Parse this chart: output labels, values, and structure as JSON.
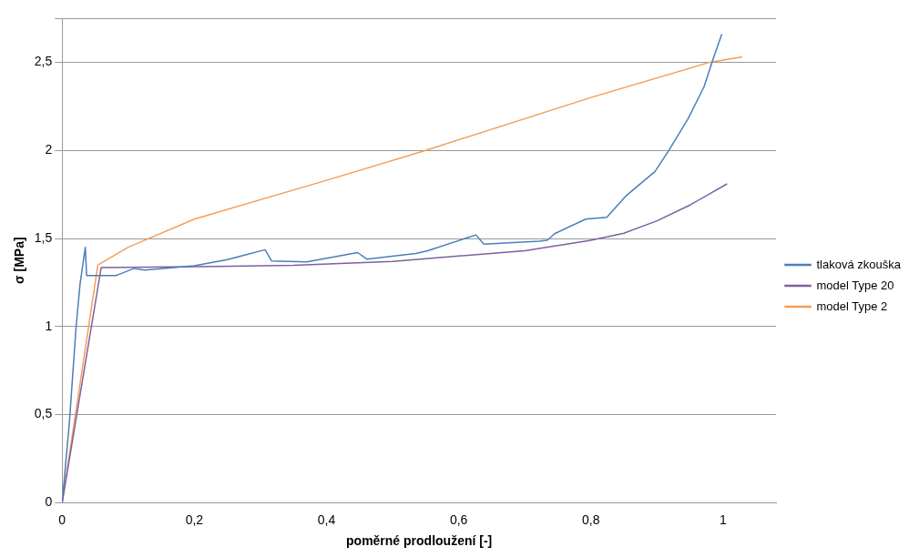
{
  "chart_data": {
    "type": "line",
    "xlabel": "poměrné prodloužení [-]",
    "ylabel": "σ [MPa]",
    "xlim": [
      0,
      1.08
    ],
    "xticks": [
      0,
      {
        "value": 0.2,
        "label": "0,2"
      },
      {
        "value": 0.4,
        "label": "0,4"
      },
      {
        "value": 0.6,
        "label": "0,6"
      },
      {
        "value": 0.8,
        "label": "0,8"
      },
      1
    ],
    "ylim": [
      0,
      2.75
    ],
    "yticks": [
      0,
      {
        "value": 0.5,
        "label": "0,5"
      },
      1,
      {
        "value": 1.5,
        "label": "1,5"
      },
      2,
      {
        "value": 2.5,
        "label": "2,5"
      }
    ],
    "grid": "y",
    "legend": "right",
    "marker": "none",
    "line_style": "solid",
    "series": [
      {
        "name": "tlaková zkouška",
        "color": "#4a7ebb",
        "x": [
          0,
          0.011,
          0.021,
          0.027,
          0.035,
          0.037,
          0.06,
          0.082,
          0.109,
          0.125,
          0.2,
          0.25,
          0.307,
          0.317,
          0.37,
          0.447,
          0.461,
          0.535,
          0.553,
          0.626,
          0.638,
          0.722,
          0.734,
          0.745,
          0.792,
          0.824,
          0.854,
          0.897,
          0.918,
          0.947,
          0.971,
          0.985,
          0.998
        ],
        "values": [
          0,
          0.46,
          0.995,
          1.24,
          1.45,
          1.29,
          1.29,
          1.29,
          1.33,
          1.32,
          1.345,
          1.38,
          1.436,
          1.372,
          1.367,
          1.42,
          1.383,
          1.415,
          1.43,
          1.52,
          1.468,
          1.484,
          1.49,
          1.527,
          1.61,
          1.62,
          1.745,
          1.88,
          2.0,
          2.18,
          2.36,
          2.52,
          2.66
        ]
      },
      {
        "name": "model Type 20",
        "color": "#7d60a0",
        "x": [
          0,
          0.059,
          0.2,
          0.35,
          0.5,
          0.6,
          0.7,
          0.8,
          0.85,
          0.9,
          0.95,
          1.006
        ],
        "values": [
          0,
          1.335,
          1.34,
          1.347,
          1.37,
          1.4,
          1.43,
          1.49,
          1.53,
          1.6,
          1.69,
          1.81
        ]
      },
      {
        "name": "model Type 2",
        "color": "#f59d56",
        "x": [
          0,
          0.054,
          0.1,
          0.2,
          0.4,
          0.55,
          0.8,
          0.98,
          1.029
        ],
        "values": [
          0,
          1.35,
          1.45,
          1.61,
          1.83,
          2.0,
          2.3,
          2.5,
          2.53
        ]
      }
    ]
  }
}
